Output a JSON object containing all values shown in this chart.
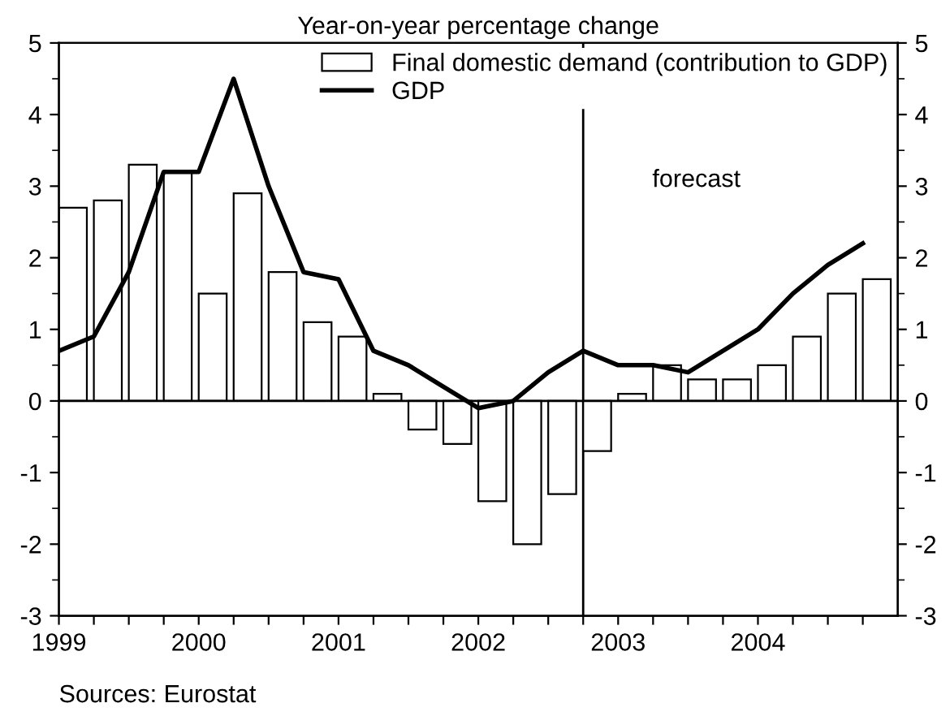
{
  "chart_data": {
    "type": "bar",
    "subtitle": "Year-on-year percentage change",
    "x": [
      1999.0,
      1999.25,
      1999.5,
      1999.75,
      2000.0,
      2000.25,
      2000.5,
      2000.75,
      2001.0,
      2001.25,
      2001.5,
      2001.75,
      2002.0,
      2002.25,
      2002.5,
      2002.75,
      2003.0,
      2003.25,
      2003.5,
      2003.75,
      2004.0,
      2004.25,
      2004.5,
      2004.75
    ],
    "series": [
      {
        "name": "Final domestic demand (contribution to GDP)",
        "color": "#ffffff",
        "x": [
          1999.1,
          1999.35,
          1999.6,
          1999.85,
          2000.1,
          2000.35,
          2000.6,
          2000.85,
          2001.1,
          2001.35,
          2001.6,
          2001.85,
          2002.1,
          2002.35,
          2002.6,
          2002.85,
          2003.1,
          2003.35,
          2003.6,
          2003.85,
          2004.1,
          2004.35,
          2004.6,
          2004.85
        ],
        "values": [
          2.7,
          2.8,
          3.3,
          3.2,
          1.5,
          2.9,
          1.8,
          1.1,
          0.9,
          0.1,
          -0.4,
          -0.6,
          -1.4,
          -2.0,
          -1.3,
          -0.7,
          0.1,
          0.5,
          0.3,
          0.3,
          0.5,
          0.9,
          1.5,
          1.7
        ]
      },
      {
        "name": "GDP",
        "type": "line",
        "color": "#000000",
        "values": [
          0.7,
          0.9,
          1.8,
          3.2,
          3.2,
          4.5,
          3.0,
          1.8,
          1.7,
          0.7,
          0.5,
          0.2,
          -0.1,
          0.0,
          0.4,
          0.7,
          0.5,
          0.5,
          0.4,
          0.7,
          1.0,
          1.5,
          1.9,
          2.2
        ]
      }
    ],
    "xlim": [
      1999,
      2005
    ],
    "xticks": [
      1999,
      {
        "value": 1999.25,
        "label": null
      },
      {
        "value": 1999.5,
        "label": null
      },
      {
        "value": 1999.75,
        "label": null
      },
      2000,
      {
        "value": 2000.25,
        "label": null
      },
      {
        "value": 2000.5,
        "label": null
      },
      {
        "value": 2000.75,
        "label": null
      },
      2001,
      {
        "value": 2001.25,
        "label": null
      },
      {
        "value": 2001.5,
        "label": null
      },
      {
        "value": 2001.75,
        "label": null
      },
      2002,
      {
        "value": 2002.25,
        "label": null
      },
      {
        "value": 2002.5,
        "label": null
      },
      {
        "value": 2002.75,
        "label": null
      },
      2003,
      {
        "value": 2003.25,
        "label": null
      },
      {
        "value": 2003.5,
        "label": null
      },
      {
        "value": 2003.75,
        "label": null
      },
      2004,
      {
        "value": 2004.25,
        "label": null
      },
      {
        "value": 2004.5,
        "label": null
      },
      {
        "value": 2004.75,
        "label": null
      }
    ],
    "ylim": [
      -3,
      5
    ],
    "yticks": [
      -3,
      -2,
      -1,
      0,
      1,
      2,
      3,
      4,
      5
    ],
    "y2lim": [
      -3,
      5
    ],
    "y2ticks": [
      -3,
      -2,
      -1,
      0,
      1,
      2,
      3,
      4,
      5
    ],
    "ref_lines": [
      {
        "axis": "x",
        "value": 2002.75,
        "color": "#000000"
      },
      {
        "axis": "y",
        "value": 0,
        "color": "#000000"
      }
    ],
    "annotations": [
      "forecast",
      "Sources: Eurostat"
    ],
    "legend": "top right",
    "grid": false
  }
}
